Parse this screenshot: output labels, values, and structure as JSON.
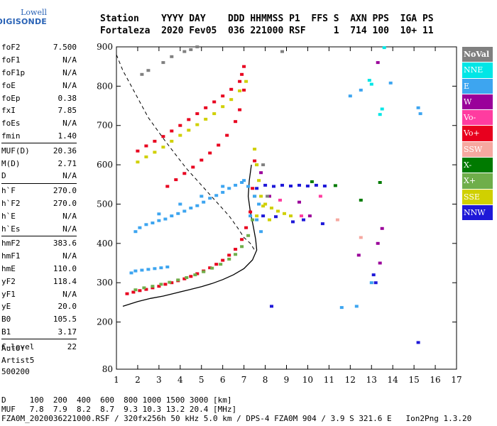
{
  "logo": {
    "line1": "Lowell",
    "line2": "DIGISONDE"
  },
  "header": {
    "line1": "Station    YYYY DAY    DDD HHMMSS P1  FFS S  AXN PPS  IGA PS",
    "line2": "Fortaleza  2020 Fev05  036 221000 RSF     1  714 100  10+ 11"
  },
  "params_groups": [
    [
      [
        "foF2",
        "7.500"
      ],
      [
        "foF1",
        "N/A"
      ],
      [
        "foF1p",
        "N/A"
      ],
      [
        "foE",
        "N/A"
      ],
      [
        "foEp",
        "0.38"
      ],
      [
        "fxI",
        "7.85"
      ],
      [
        "foEs",
        "N/A"
      ],
      [
        "fmin",
        "1.40"
      ]
    ],
    [
      [
        "MUF(D)",
        "20.36"
      ],
      [
        "M(D)",
        "2.71"
      ],
      [
        "D",
        "N/A"
      ]
    ],
    [
      [
        "h`F",
        "270.0"
      ],
      [
        "h`F2",
        "270.0"
      ],
      [
        "h`E",
        "N/A"
      ],
      [
        "h`Es",
        "N/A"
      ]
    ],
    [
      [
        "hmF2",
        "383.6"
      ],
      [
        "hmF1",
        "N/A"
      ],
      [
        "hmE",
        "110.0"
      ],
      [
        "yF2",
        "118.4"
      ],
      [
        "yF1",
        "N/A"
      ],
      [
        "yE",
        "20.0"
      ],
      [
        "B0",
        "105.5"
      ],
      [
        "B1",
        "3.17"
      ]
    ],
    [
      [
        "C-level",
        "22"
      ]
    ]
  ],
  "auto": {
    "line1": "Auto:",
    "line2": "Artist5",
    "line3": "500200"
  },
  "legend": [
    {
      "label": "NoVal",
      "color": "#808080"
    },
    {
      "label": "NNE",
      "color": "#00e6e6"
    },
    {
      "label": "E",
      "color": "#3da5f0"
    },
    {
      "label": "W",
      "color": "#9a009a"
    },
    {
      "label": "Vo-",
      "color": "#ff3ca0"
    },
    {
      "label": "Vo+",
      "color": "#e8001e"
    },
    {
      "label": "SSW",
      "color": "#f6a8a0"
    },
    {
      "label": "X-",
      "color": "#007a00"
    },
    {
      "label": "X+",
      "color": "#6fae4a"
    },
    {
      "label": "SSE",
      "color": "#d0d000"
    },
    {
      "label": "NNW",
      "color": "#1e18d8"
    }
  ],
  "footer": {
    "line1": "D     100  200  400  600  800 1000 1500 3000 [km]",
    "line2": "MUF   7.8  7.9  8.2  8.7  9.3 10.3 13.2 20.4 [MHz]",
    "line3": "FZA0M_2020036221000.RSF / 320fx256h 50 kHz 5.0 km / DPS-4 FZA0M 904 / 3.9 S 321.6 E   Ion2Png 1.3.20"
  },
  "chart_data": {
    "type": "scatter",
    "x_ticks": [
      1,
      2,
      3,
      4,
      5,
      6,
      7,
      8,
      9,
      10,
      11,
      12,
      13,
      14,
      15,
      16,
      17
    ],
    "y_ticks": [
      80,
      200,
      300,
      400,
      500,
      600,
      700,
      800,
      900
    ],
    "xlim": [
      1,
      17
    ],
    "ylim": [
      80,
      900
    ],
    "grid": false,
    "legend_position": "right",
    "series": [
      {
        "name": "Vo+",
        "color": "#e8001e",
        "points": [
          [
            1.5,
            272
          ],
          [
            1.8,
            276
          ],
          [
            2.1,
            280
          ],
          [
            2.4,
            283
          ],
          [
            2.7,
            287
          ],
          [
            3.0,
            291
          ],
          [
            3.3,
            296
          ],
          [
            3.6,
            300
          ],
          [
            3.9,
            305
          ],
          [
            4.2,
            310
          ],
          [
            4.5,
            316
          ],
          [
            4.8,
            323
          ],
          [
            5.1,
            330
          ],
          [
            5.4,
            338
          ],
          [
            5.7,
            347
          ],
          [
            6.0,
            357
          ],
          [
            6.3,
            370
          ],
          [
            6.6,
            385
          ],
          [
            6.9,
            410
          ],
          [
            7.1,
            440
          ],
          [
            7.3,
            480
          ],
          [
            7.4,
            540
          ],
          [
            7.5,
            610
          ],
          [
            2.0,
            635
          ],
          [
            2.4,
            648
          ],
          [
            2.8,
            660
          ],
          [
            3.2,
            672
          ],
          [
            3.6,
            686
          ],
          [
            4.0,
            700
          ],
          [
            4.4,
            715
          ],
          [
            4.8,
            730
          ],
          [
            5.2,
            745
          ],
          [
            5.6,
            760
          ],
          [
            6.0,
            775
          ],
          [
            6.4,
            792
          ],
          [
            6.8,
            812
          ],
          [
            6.9,
            830
          ],
          [
            7.0,
            850
          ],
          [
            3.4,
            545
          ],
          [
            3.8,
            562
          ],
          [
            4.2,
            578
          ],
          [
            4.6,
            594
          ],
          [
            5.0,
            612
          ],
          [
            5.4,
            630
          ],
          [
            5.8,
            650
          ],
          [
            6.2,
            675
          ],
          [
            6.6,
            710
          ],
          [
            6.8,
            740
          ],
          [
            7.0,
            790
          ]
        ]
      },
      {
        "name": "X+",
        "color": "#6fae4a",
        "points": [
          [
            1.9,
            282
          ],
          [
            2.3,
            287
          ],
          [
            2.7,
            291
          ],
          [
            3.1,
            296
          ],
          [
            3.5,
            301
          ],
          [
            3.9,
            307
          ],
          [
            4.3,
            313
          ],
          [
            4.7,
            320
          ],
          [
            5.1,
            328
          ],
          [
            5.5,
            337
          ],
          [
            5.9,
            347
          ],
          [
            6.3,
            360
          ],
          [
            6.6,
            372
          ],
          [
            6.9,
            392
          ],
          [
            7.2,
            420
          ],
          [
            7.4,
            460
          ],
          [
            7.5,
            520
          ],
          [
            7.6,
            600
          ]
        ]
      },
      {
        "name": "SSE",
        "color": "#d0d000",
        "points": [
          [
            2.0,
            607
          ],
          [
            2.4,
            620
          ],
          [
            2.8,
            632
          ],
          [
            3.2,
            645
          ],
          [
            3.6,
            660
          ],
          [
            4.0,
            675
          ],
          [
            4.4,
            688
          ],
          [
            4.8,
            702
          ],
          [
            5.2,
            716
          ],
          [
            5.6,
            730
          ],
          [
            6.0,
            748
          ],
          [
            6.4,
            766
          ],
          [
            6.8,
            788
          ],
          [
            7.1,
            812
          ],
          [
            7.5,
            640
          ],
          [
            7.6,
            600
          ],
          [
            7.7,
            560
          ],
          [
            7.8,
            520
          ],
          [
            8.0,
            500
          ],
          [
            8.3,
            490
          ],
          [
            8.6,
            482
          ],
          [
            8.9,
            476
          ],
          [
            9.2,
            470
          ],
          [
            7.6,
            470
          ],
          [
            7.9,
            495
          ],
          [
            8.2,
            460
          ]
        ]
      },
      {
        "name": "E",
        "color": "#3da5f0",
        "points": [
          [
            1.7,
            325
          ],
          [
            1.9,
            330
          ],
          [
            2.2,
            332
          ],
          [
            2.5,
            334
          ],
          [
            2.8,
            336
          ],
          [
            3.1,
            338
          ],
          [
            3.4,
            340
          ],
          [
            2.1,
            440
          ],
          [
            2.4,
            448
          ],
          [
            2.7,
            452
          ],
          [
            3.0,
            458
          ],
          [
            3.3,
            462
          ],
          [
            3.6,
            470
          ],
          [
            3.9,
            476
          ],
          [
            4.2,
            482
          ],
          [
            4.5,
            490
          ],
          [
            4.8,
            496
          ],
          [
            5.1,
            505
          ],
          [
            5.4,
            515
          ],
          [
            5.7,
            522
          ],
          [
            6.0,
            530
          ],
          [
            6.3,
            540
          ],
          [
            6.6,
            548
          ],
          [
            6.9,
            555
          ],
          [
            7.2,
            545
          ],
          [
            7.5,
            520
          ],
          [
            7.7,
            500
          ],
          [
            1.9,
            430
          ],
          [
            3.0,
            475
          ],
          [
            4.0,
            500
          ],
          [
            5.0,
            520
          ],
          [
            6.0,
            545
          ],
          [
            7.0,
            560
          ],
          [
            7.3,
            470
          ],
          [
            7.6,
            460
          ],
          [
            7.8,
            430
          ],
          [
            11.6,
            237
          ],
          [
            12.3,
            240
          ],
          [
            13.0,
            300
          ],
          [
            12.5,
            790
          ],
          [
            12.0,
            775
          ],
          [
            13.9,
            808
          ],
          [
            15.2,
            745
          ],
          [
            15.3,
            730
          ]
        ]
      },
      {
        "name": "NNW",
        "color": "#1e18d8",
        "points": [
          [
            7.6,
            540
          ],
          [
            8.0,
            548
          ],
          [
            8.4,
            545
          ],
          [
            8.8,
            548
          ],
          [
            9.2,
            546
          ],
          [
            9.6,
            548
          ],
          [
            10.0,
            546
          ],
          [
            10.4,
            548
          ],
          [
            10.8,
            546
          ],
          [
            7.9,
            470
          ],
          [
            8.5,
            468
          ],
          [
            9.3,
            455
          ],
          [
            9.8,
            460
          ],
          [
            10.7,
            450
          ],
          [
            8.3,
            240
          ],
          [
            13.1,
            320
          ],
          [
            13.2,
            300
          ],
          [
            15.2,
            148
          ]
        ]
      },
      {
        "name": "W",
        "color": "#9a009a",
        "points": [
          [
            7.8,
            580
          ],
          [
            8.2,
            520
          ],
          [
            9.6,
            505
          ],
          [
            10.1,
            470
          ],
          [
            13.3,
            400
          ],
          [
            13.4,
            350
          ],
          [
            13.5,
            438
          ],
          [
            13.3,
            860
          ],
          [
            12.4,
            370
          ]
        ]
      },
      {
        "name": "X-",
        "color": "#007a00",
        "points": [
          [
            11.3,
            547
          ],
          [
            13.4,
            555
          ],
          [
            10.2,
            557
          ],
          [
            12.5,
            510
          ]
        ]
      },
      {
        "name": "NoVal",
        "color": "#808080",
        "points": [
          [
            4.2,
            888
          ],
          [
            4.5,
            893
          ],
          [
            4.8,
            900
          ],
          [
            3.6,
            875
          ],
          [
            3.2,
            860
          ],
          [
            2.5,
            840
          ],
          [
            2.2,
            830
          ],
          [
            8.8,
            888
          ],
          [
            7.9,
            600
          ],
          [
            8.1,
            520
          ]
        ]
      },
      {
        "name": "NNE",
        "color": "#00e6e6",
        "points": [
          [
            13.4,
            728
          ],
          [
            13.5,
            742
          ],
          [
            13.6,
            898
          ],
          [
            12.9,
            815
          ],
          [
            13.0,
            805
          ]
        ]
      },
      {
        "name": "Vo-",
        "color": "#ff3ca0",
        "points": [
          [
            9.7,
            470
          ],
          [
            8.7,
            510
          ],
          [
            10.6,
            520
          ]
        ]
      },
      {
        "name": "SSW",
        "color": "#f6a8a0",
        "points": [
          [
            11.4,
            460
          ],
          [
            12.5,
            415
          ]
        ]
      }
    ],
    "profile_solid": [
      [
        1.3,
        240
      ],
      [
        2.0,
        252
      ],
      [
        2.6,
        260
      ],
      [
        3.2,
        266
      ],
      [
        3.8,
        274
      ],
      [
        4.4,
        282
      ],
      [
        5.0,
        290
      ],
      [
        5.5,
        298
      ],
      [
        6.0,
        308
      ],
      [
        6.5,
        320
      ],
      [
        7.0,
        336
      ],
      [
        7.4,
        358
      ],
      [
        7.6,
        383
      ],
      [
        7.55,
        410
      ],
      [
        7.45,
        440
      ],
      [
        7.3,
        480
      ],
      [
        7.2,
        520
      ],
      [
        7.25,
        560
      ],
      [
        7.35,
        600
      ]
    ],
    "profile_dashed": [
      [
        1.0,
        880
      ],
      [
        1.3,
        840
      ],
      [
        1.7,
        800
      ],
      [
        2.1,
        760
      ],
      [
        2.5,
        720
      ],
      [
        2.9,
        690
      ],
      [
        3.3,
        660
      ],
      [
        3.8,
        625
      ],
      [
        4.3,
        590
      ],
      [
        4.8,
        560
      ],
      [
        5.3,
        530
      ],
      [
        5.8,
        500
      ],
      [
        6.3,
        470
      ],
      [
        6.7,
        440
      ],
      [
        7.0,
        415
      ],
      [
        7.3,
        400
      ],
      [
        7.5,
        383
      ]
    ]
  }
}
